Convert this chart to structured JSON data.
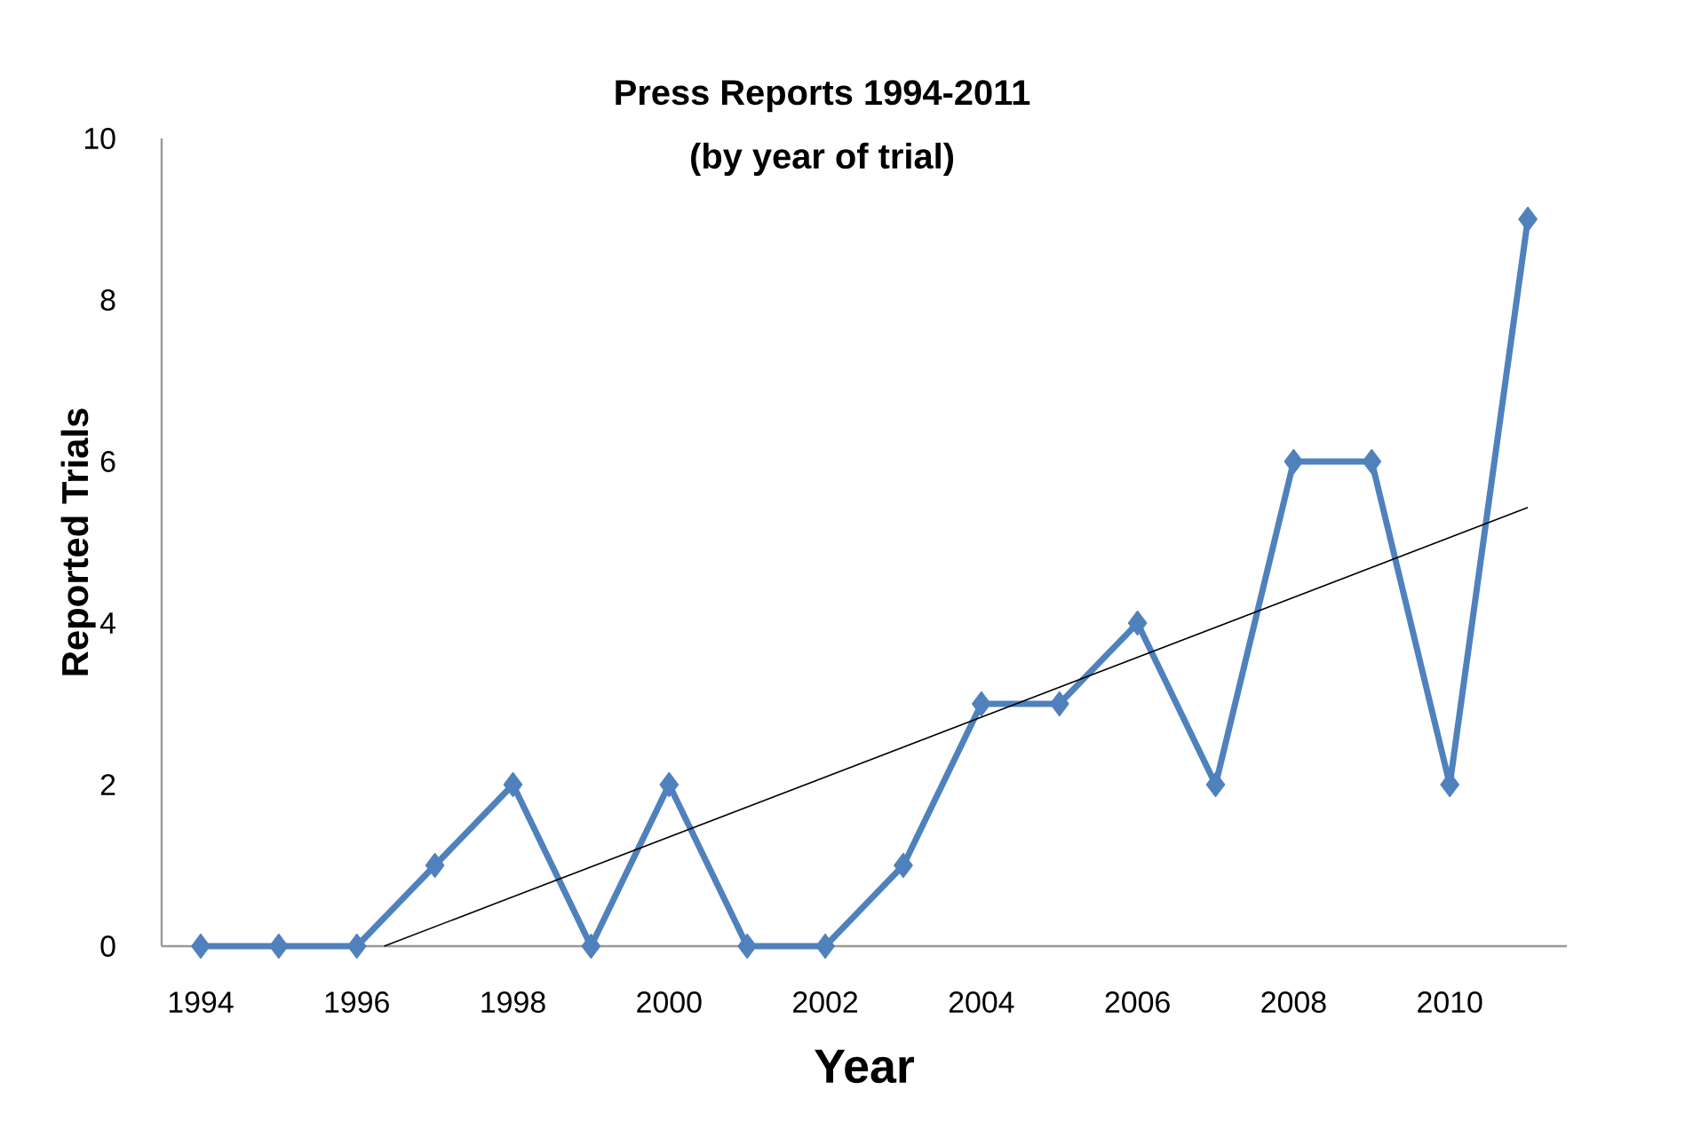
{
  "chart_data": {
    "type": "line",
    "title": "Press Reports 1994-2011",
    "subtitle": "(by year of trial)",
    "xlabel": "Year",
    "ylabel": "Reported Trials",
    "x": [
      1994,
      1995,
      1996,
      1997,
      1998,
      1999,
      2000,
      2001,
      2002,
      2003,
      2004,
      2005,
      2006,
      2007,
      2008,
      2009,
      2010,
      2011
    ],
    "series": [
      {
        "color": "#4f81bd",
        "values": [
          0,
          0,
          0,
          1,
          2,
          0,
          2,
          0,
          0,
          1,
          3,
          3,
          4,
          2,
          6,
          6,
          2,
          9
        ]
      },
      {
        "type": "line",
        "color": "#000000",
        "x": [
          1996.35,
          2011
        ],
        "values": [
          0,
          5.43
        ],
        "marker": "none"
      }
    ],
    "xlim": [
      1993.5,
      2011.5
    ],
    "xticks": [
      1994,
      1996,
      1998,
      2000,
      2002,
      2004,
      2006,
      2008,
      2010
    ],
    "ylim": [
      0,
      10
    ],
    "yticks": [
      0,
      2,
      4,
      6,
      8,
      10
    ],
    "grid": false,
    "marker": "diamond",
    "line_style": "solid"
  }
}
